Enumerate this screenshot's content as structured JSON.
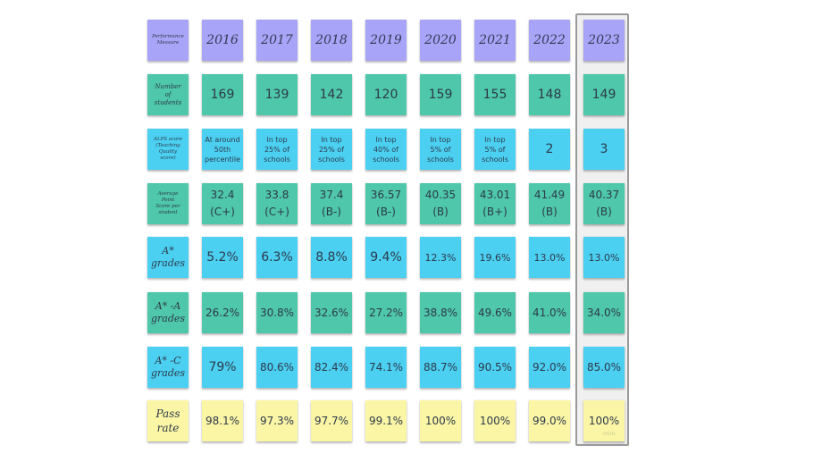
{
  "header": {
    "measure_label": "Performance\nMeasure",
    "years": [
      "2016",
      "2017",
      "2018",
      "2019",
      "2020",
      "2021",
      "2022",
      "2023"
    ]
  },
  "rows": [
    {
      "label": "Number\nof\nstudents",
      "values": [
        "169",
        "139",
        "142",
        "120",
        "159",
        "155",
        "148",
        "149"
      ]
    },
    {
      "label": "ALPS score\n(Teaching\nQuality\nscore)",
      "values": [
        "At around\n50th\npercentile",
        "In top\n25% of\nschools",
        "In top\n25% of\nschools",
        "In top\n40% of\nschools",
        "In top\n5% of\nschools",
        "In top\n5% of\nschools",
        "2",
        "3"
      ]
    },
    {
      "label": "Average\nPoint\nScore per\nstudent",
      "values": [
        "32.4\n(C+)",
        "33.8\n(C+)",
        "37.4\n(B-)",
        "36.57\n(B-)",
        "40.35\n(B)",
        "43.01\n(B+)",
        "41.49\n(B)",
        "40.37\n(B)"
      ]
    },
    {
      "label": "A*\ngrades",
      "values": [
        "5.2%",
        "6.3%",
        "8.8%",
        "9.4%",
        "12.3%",
        "19.6%",
        "13.0%",
        "13.0%"
      ]
    },
    {
      "label": "A* -A\ngrades",
      "values": [
        "26.2%",
        "30.8%",
        "32.6%",
        "27.2%",
        "38.8%",
        "49.6%",
        "41.0%",
        "34.0%"
      ]
    },
    {
      "label": "A* -C\ngrades",
      "values": [
        "79%",
        "80.6%",
        "82.4%",
        "74.1%",
        "88.7%",
        "90.5%",
        "92.0%",
        "85.0%"
      ]
    },
    {
      "label": "Pass\nrate",
      "values": [
        "98.1%",
        "97.3%",
        "97.7%",
        "99.1%",
        "100%",
        "100%",
        "99.0%",
        "100%"
      ]
    }
  ],
  "colors": {
    "header": "#a8a4f7",
    "teal": "#4ec7aa",
    "blue": "#4bd0f2",
    "yellow": "#fbf6a6",
    "highlight_border": "#9a9a9a"
  },
  "watermark": "miro"
}
